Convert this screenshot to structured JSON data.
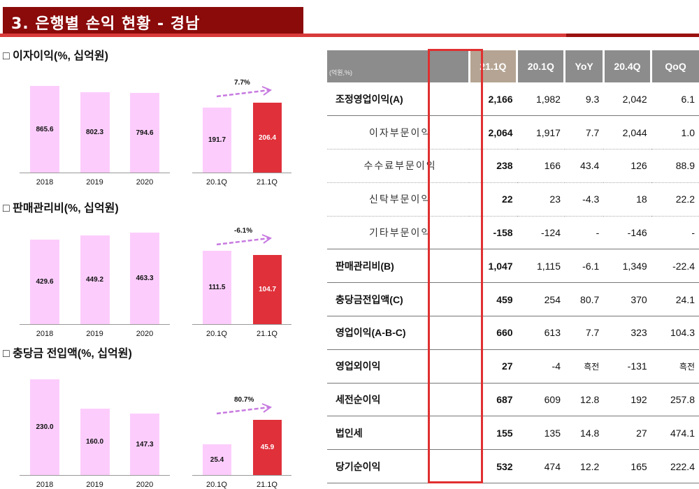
{
  "title": "3. 은행별 손익 현황 - 경남",
  "colors": {
    "title_bg": "#8b0a0a",
    "accent_line": "#d83a3a",
    "bar_light": "#fccdfc",
    "bar_highlight": "#e0303a",
    "arrow": "#c77ae0",
    "header_bg": "#8c8c8c",
    "header_highlight": "#b5a493",
    "highlight_box": "#e03030"
  },
  "chart_data": [
    {
      "type": "bar",
      "title": "□ 이자이익(%, 십억원)",
      "categories": [
        "2018",
        "2019",
        "2020"
      ],
      "values": [
        865.6,
        802.3,
        794.6
      ],
      "quarterly": {
        "categories": [
          "20.1Q",
          "21.1Q"
        ],
        "values": [
          191.7,
          206.4
        ],
        "growth_label": "7.7%"
      }
    },
    {
      "type": "bar",
      "title": "□ 판매관리비(%, 십억원)",
      "categories": [
        "2018",
        "2019",
        "2020"
      ],
      "values": [
        429.6,
        449.2,
        463.3
      ],
      "quarterly": {
        "categories": [
          "20.1Q",
          "21.1Q"
        ],
        "values": [
          111.5,
          104.7
        ],
        "growth_label": "-6.1%"
      }
    },
    {
      "type": "bar",
      "title": "□ 충당금 전입액(%, 십억원)",
      "categories": [
        "2018",
        "2019",
        "2020"
      ],
      "values": [
        230.0,
        160.0,
        147.3
      ],
      "quarterly": {
        "categories": [
          "20.1Q",
          "21.1Q"
        ],
        "values": [
          25.4,
          45.9
        ],
        "growth_label": "80.7%"
      }
    }
  ],
  "table": {
    "unit": "(억원,%)",
    "headers": [
      "21.1Q",
      "20.1Q",
      "YoY",
      "20.4Q",
      "QoQ"
    ],
    "rows": [
      {
        "label": "조정영업이익(A)",
        "sub": false,
        "values": [
          "2,166",
          "1,982",
          "9.3",
          "2,042",
          "6.1"
        ]
      },
      {
        "label": "이자부문이익",
        "sub": true,
        "values": [
          "2,064",
          "1,917",
          "7.7",
          "2,044",
          "1.0"
        ]
      },
      {
        "label": "수수료부문이익",
        "sub": true,
        "values": [
          "238",
          "166",
          "43.4",
          "126",
          "88.9"
        ]
      },
      {
        "label": "신탁부문이익",
        "sub": true,
        "values": [
          "22",
          "23",
          "-4.3",
          "18",
          "22.2"
        ]
      },
      {
        "label": "기타부문이익",
        "sub": true,
        "values": [
          "-158",
          "-124",
          "-",
          "-146",
          "-"
        ]
      },
      {
        "label": "판매관리비(B)",
        "sub": false,
        "values": [
          "1,047",
          "1,115",
          "-6.1",
          "1,349",
          "-22.4"
        ]
      },
      {
        "label": "충당금전입액(C)",
        "sub": false,
        "values": [
          "459",
          "254",
          "80.7",
          "370",
          "24.1"
        ]
      },
      {
        "label": "영업이익(A-B-C)",
        "sub": false,
        "values": [
          "660",
          "613",
          "7.7",
          "323",
          "104.3"
        ]
      },
      {
        "label": "영업외이익",
        "sub": false,
        "values": [
          "27",
          "-4",
          "흑전",
          "-131",
          "흑전"
        ]
      },
      {
        "label": "세전순이익",
        "sub": false,
        "values": [
          "687",
          "609",
          "12.8",
          "192",
          "257.8"
        ]
      },
      {
        "label": "법인세",
        "sub": false,
        "values": [
          "155",
          "135",
          "14.8",
          "27",
          "474.1"
        ]
      },
      {
        "label": "당기순이익",
        "sub": false,
        "values": [
          "532",
          "474",
          "12.2",
          "165",
          "222.4"
        ]
      }
    ]
  }
}
